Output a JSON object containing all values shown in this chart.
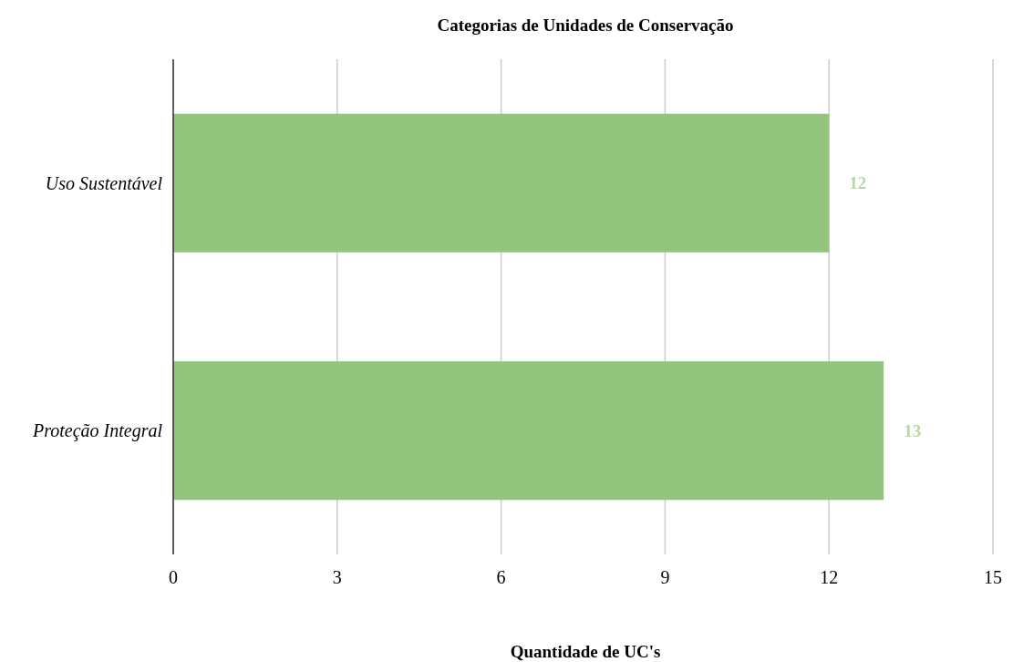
{
  "chart_data": {
    "type": "bar",
    "orientation": "horizontal",
    "title": "Categorias de Unidades de Conservação",
    "xlabel": "Quantidade de UC's",
    "categories": [
      "Uso Sustentável",
      "Proteção Integral"
    ],
    "values": [
      12,
      13
    ],
    "color": "#93c47d",
    "xlim": [
      0,
      15
    ],
    "xticks": [
      0,
      3,
      6,
      9,
      12,
      15
    ],
    "grid": "x",
    "data_labels": true
  }
}
